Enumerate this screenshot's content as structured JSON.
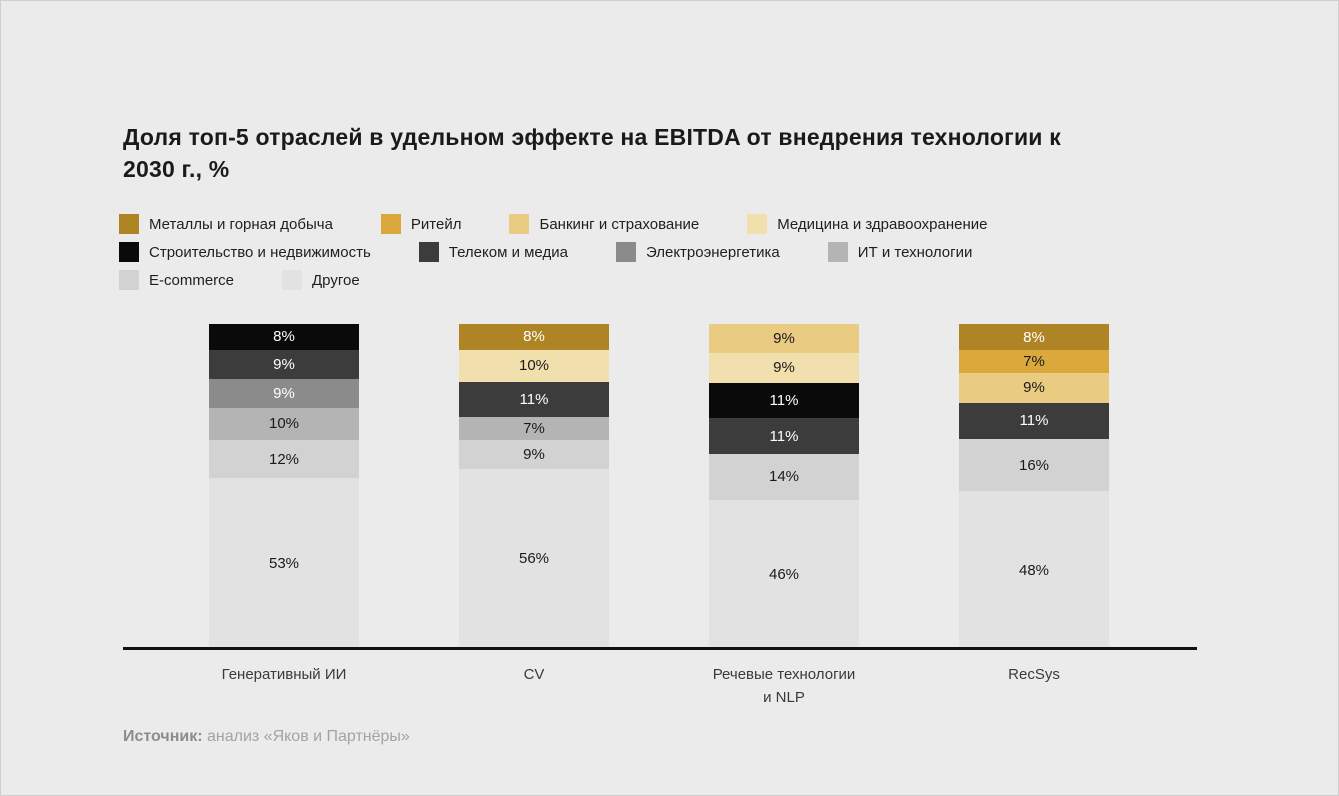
{
  "title": "Доля топ-5 отраслей в удельном эффекте на EBITDA от внедрения технологии к 2030 г., %",
  "colors": {
    "background": "#EBEBEB",
    "axis": "#111111",
    "title_text": "#1A1A1A",
    "category_text": "#3A3A3A",
    "source_text": "#A3A3A3"
  },
  "industries": [
    {
      "id": "metals",
      "label": "Металлы и горная добыча",
      "color": "#AF8424",
      "text_color": "#FFFFFF"
    },
    {
      "id": "retail",
      "label": "Ритейл",
      "color": "#DBA83C",
      "text_color": "#1A1A1A"
    },
    {
      "id": "banking",
      "label": "Банкинг и страхование",
      "color": "#E9CB81",
      "text_color": "#1A1A1A"
    },
    {
      "id": "medicine",
      "label": "Медицина и здравоохранение",
      "color": "#F1DFAD",
      "text_color": "#1A1A1A"
    },
    {
      "id": "construction",
      "label": "Строительство и недвижимость",
      "color": "#0A0A0A",
      "text_color": "#FFFFFF"
    },
    {
      "id": "telecom",
      "label": "Телеком и медиа",
      "color": "#3C3C3C",
      "text_color": "#FFFFFF"
    },
    {
      "id": "energy",
      "label": "Электроэнергетика",
      "color": "#8B8B8B",
      "text_color": "#FFFFFF"
    },
    {
      "id": "it",
      "label": "ИТ и технологии",
      "color": "#B4B4B4",
      "text_color": "#1A1A1A"
    },
    {
      "id": "ecommerce",
      "label": "E-commerce",
      "color": "#D2D2D2",
      "text_color": "#1A1A1A"
    },
    {
      "id": "other",
      "label": "Другое",
      "color": "#E2E2E2",
      "text_color": "#1A1A1A"
    }
  ],
  "legend": {
    "rows": [
      [
        "metals",
        "retail",
        "banking",
        "medicine"
      ],
      [
        "construction",
        "telecom",
        "energy",
        "it"
      ],
      [
        "ecommerce",
        "other"
      ]
    ]
  },
  "chart_data": {
    "type": "bar",
    "stacked": true,
    "unit": "%",
    "value_suffix": "%",
    "categories": [
      "Генеративный ИИ",
      "CV",
      "Речевые технологии\nи NLP",
      "RecSys"
    ],
    "legend_position": "top",
    "grid": false,
    "bars": [
      {
        "category": "Генеративный ИИ",
        "segments": [
          {
            "industry": "construction",
            "label": "Строительство и недвижимость",
            "value": 8
          },
          {
            "industry": "telecom",
            "label": "Телеком и медиа",
            "value": 9
          },
          {
            "industry": "energy",
            "label": "Электроэнергетика",
            "value": 9
          },
          {
            "industry": "it",
            "label": "ИТ и технологии",
            "value": 10
          },
          {
            "industry": "ecommerce",
            "label": "E-commerce",
            "value": 12
          },
          {
            "industry": "other",
            "label": "Другое",
            "value": 53
          }
        ]
      },
      {
        "category": "CV",
        "segments": [
          {
            "industry": "metals",
            "label": "Металлы и горная добыча",
            "value": 8
          },
          {
            "industry": "medicine",
            "label": "Медицина и здравоохранение",
            "value": 10
          },
          {
            "industry": "telecom",
            "label": "Телеком и медиа",
            "value": 11
          },
          {
            "industry": "it",
            "label": "ИТ и технологии",
            "value": 7
          },
          {
            "industry": "ecommerce",
            "label": "E-commerce",
            "value": 9
          },
          {
            "industry": "other",
            "label": "Другое",
            "value": 56
          }
        ]
      },
      {
        "category": "Речевые технологии и NLP",
        "segments": [
          {
            "industry": "banking",
            "label": "Банкинг и страхование",
            "value": 9
          },
          {
            "industry": "medicine",
            "label": "Медицина и здравоохранение",
            "value": 9
          },
          {
            "industry": "construction",
            "label": "Строительство и недвижимость",
            "value": 11
          },
          {
            "industry": "telecom",
            "label": "Телеком и медиа",
            "value": 11
          },
          {
            "industry": "ecommerce",
            "label": "E-commerce",
            "value": 14
          },
          {
            "industry": "other",
            "label": "Другое",
            "value": 46
          }
        ]
      },
      {
        "category": "RecSys",
        "segments": [
          {
            "industry": "metals",
            "label": "Металлы и горная добыча",
            "value": 8
          },
          {
            "industry": "retail",
            "label": "Ритейл",
            "value": 7
          },
          {
            "industry": "banking",
            "label": "Банкинг и страхование",
            "value": 9
          },
          {
            "industry": "telecom",
            "label": "Телеком и медиа",
            "value": 11
          },
          {
            "industry": "ecommerce",
            "label": "E-commerce",
            "value": 16
          },
          {
            "industry": "other",
            "label": "Другое",
            "value": 48
          }
        ]
      }
    ]
  },
  "source": {
    "label": "Источник:",
    "text": " анализ «Яков и Партнёры»"
  }
}
